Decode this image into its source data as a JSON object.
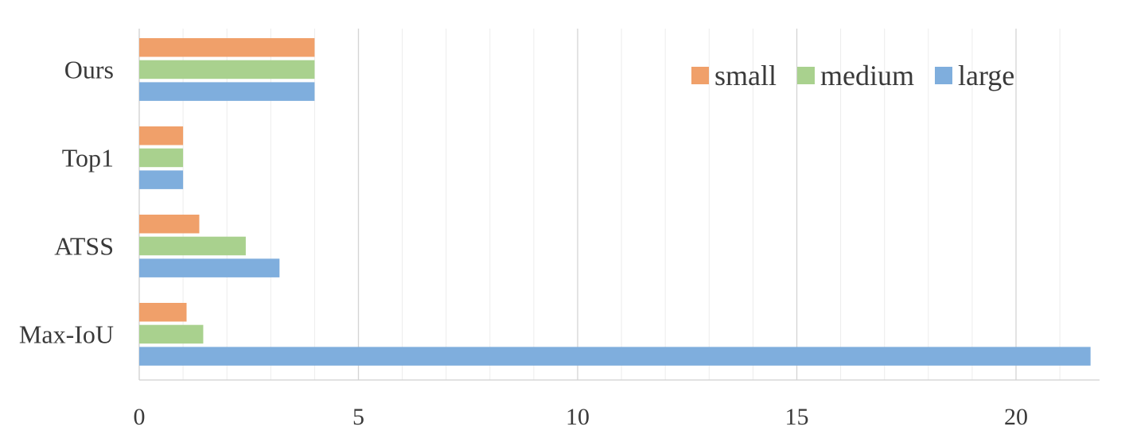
{
  "chart_data": {
    "type": "bar",
    "orientation": "horizontal",
    "categories": [
      "Ours",
      "Top1",
      "ATSS",
      "Max-IoU"
    ],
    "series": [
      {
        "name": "small",
        "color": "#F0A06A",
        "values": [
          4.0,
          1.0,
          1.37,
          1.08
        ]
      },
      {
        "name": "medium",
        "color": "#A9D18E",
        "values": [
          4.0,
          1.0,
          2.43,
          1.46
        ]
      },
      {
        "name": "large",
        "color": "#7FAEDD",
        "values": [
          4.0,
          1.0,
          3.2,
          21.7
        ]
      }
    ],
    "x_ticks": [
      "0",
      "5",
      "10",
      "15",
      "20"
    ],
    "xlim": [
      0,
      22
    ],
    "major_tick_step": 5,
    "minor_tick_step": 1,
    "grid": true,
    "legend_position": "top-right",
    "title": "",
    "xlabel": "",
    "ylabel": ""
  }
}
